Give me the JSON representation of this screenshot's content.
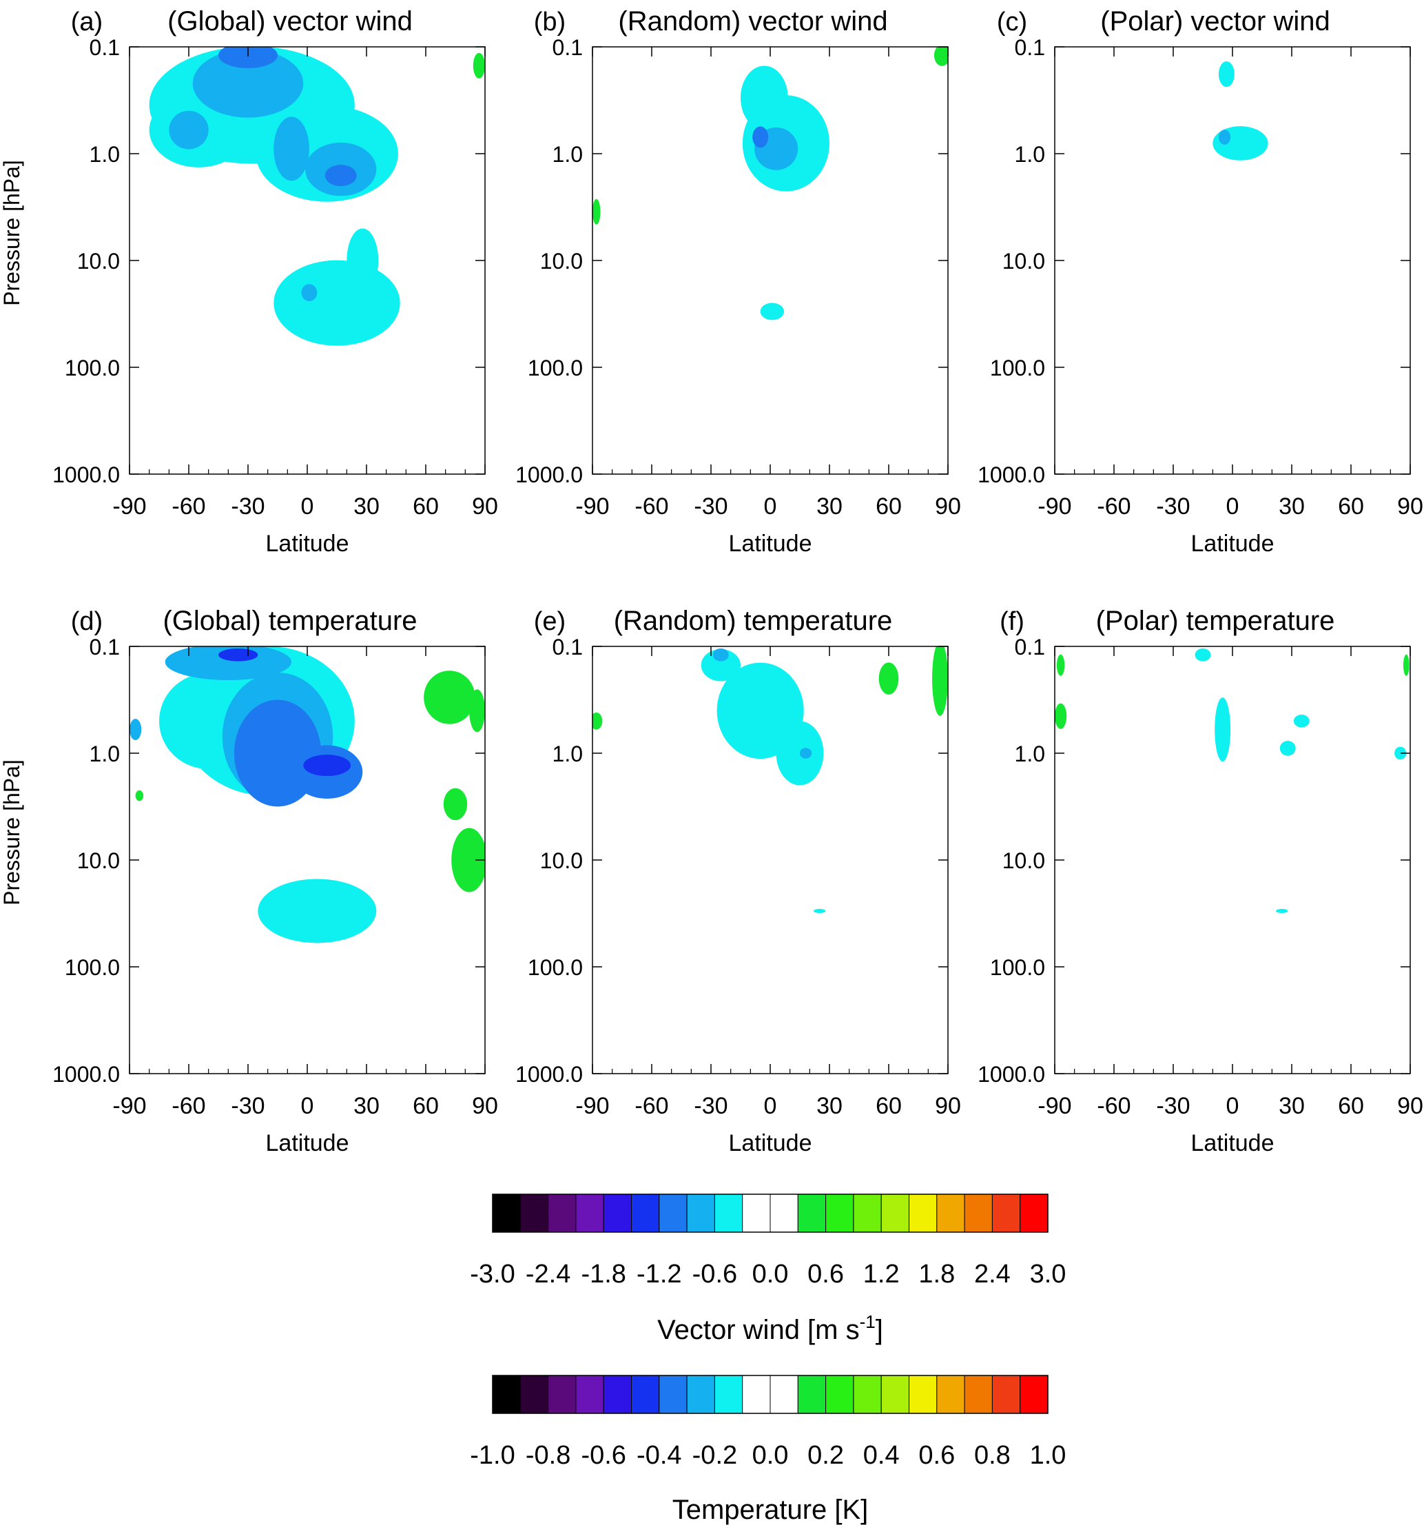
{
  "chart_data": [
    {
      "type": "heatmap",
      "panel": "(a)",
      "title": "(Global)  vector wind",
      "xlabel": "Latitude",
      "ylabel": "Pressure [hPa]",
      "xlim": [
        -90,
        90
      ],
      "xticks": [
        "-90",
        "-60",
        "-30",
        "0",
        "30",
        "60",
        "90"
      ],
      "yscale": "log",
      "ylim": [
        1000,
        0.1
      ],
      "yticks": [
        "0.1",
        "1.0",
        "10.0",
        "100.0",
        "1000.0"
      ],
      "shaded_regions": [
        {
          "level": -0.6,
          "lat": -25,
          "p": 0.25,
          "note": "broad light-blue region -90 to 40 lat, 0.1-3 hPa"
        },
        {
          "level": -1.2,
          "lat": -30,
          "p": 0.2
        },
        {
          "level": -1.8,
          "lat": -30,
          "p": 0.12
        },
        {
          "level": -1.2,
          "lat": 17,
          "p": 1.4
        },
        {
          "level": -1.8,
          "lat": 17,
          "p": 1.6
        },
        {
          "level": -0.6,
          "lat": 15,
          "p": 25
        },
        {
          "level": -1.2,
          "lat": 1,
          "p": 20
        },
        {
          "level": 0.6,
          "lat": 87,
          "p": 0.15
        }
      ]
    },
    {
      "type": "heatmap",
      "panel": "(b)",
      "title": "(Random)  vector wind",
      "xlabel": "Latitude",
      "ylabel": "",
      "xlim": [
        -90,
        90
      ],
      "xticks": [
        "-90",
        "-60",
        "-30",
        "0",
        "30",
        "60",
        "90"
      ],
      "yscale": "log",
      "ylim": [
        1000,
        0.1
      ],
      "yticks": [
        "0.1",
        "1.0",
        "10.0",
        "100.0",
        "1000.0"
      ],
      "shaded_regions": [
        {
          "level": -0.6,
          "lat": 5,
          "p": 0.6
        },
        {
          "level": -1.2,
          "lat": 3,
          "p": 0.8
        },
        {
          "level": -1.8,
          "lat": -5,
          "p": 0.7
        },
        {
          "level": -0.6,
          "lat": 1,
          "p": 30
        },
        {
          "level": 0.6,
          "lat": 87,
          "p": 0.12
        }
      ]
    },
    {
      "type": "heatmap",
      "panel": "(c)",
      "title": "(Polar)  vector wind",
      "xlabel": "Latitude",
      "ylabel": "",
      "xlim": [
        -90,
        90
      ],
      "xticks": [
        "-90",
        "-60",
        "-30",
        "0",
        "30",
        "60",
        "90"
      ],
      "yscale": "log",
      "ylim": [
        1000,
        0.1
      ],
      "yticks": [
        "0.1",
        "1.0",
        "10.0",
        "100.0",
        "1000.0"
      ],
      "shaded_regions": [
        {
          "level": -0.6,
          "lat": -3,
          "p": 0.18
        },
        {
          "level": -0.6,
          "lat": 5,
          "p": 0.8
        },
        {
          "level": -1.2,
          "lat": -4,
          "p": 0.7
        }
      ]
    },
    {
      "type": "heatmap",
      "panel": "(d)",
      "title": "(Global) temperature",
      "xlabel": "Latitude",
      "ylabel": "Pressure [hPa]",
      "xlim": [
        -90,
        90
      ],
      "xticks": [
        "-90",
        "-60",
        "-30",
        "0",
        "30",
        "60",
        "90"
      ],
      "yscale": "log",
      "ylim": [
        1000,
        0.1
      ],
      "yticks": [
        "0.1",
        "1.0",
        "10.0",
        "100.0",
        "1000.0"
      ],
      "shaded_regions": [
        {
          "level": -0.2,
          "lat": -20,
          "p": 0.5
        },
        {
          "level": -0.4,
          "lat": -20,
          "p": 0.6
        },
        {
          "level": -0.6,
          "lat": -35,
          "p": 0.12
        },
        {
          "level": -0.6,
          "lat": 10,
          "p": 1.5
        },
        {
          "level": -0.8,
          "lat": 10,
          "p": 1.2
        },
        {
          "level": -0.2,
          "lat": 5,
          "p": 30
        },
        {
          "level": 0.2,
          "lat": 72,
          "p": 0.3
        },
        {
          "level": 0.2,
          "lat": 80,
          "p": 10
        }
      ]
    },
    {
      "type": "heatmap",
      "panel": "(e)",
      "title": "(Random)  temperature",
      "xlabel": "Latitude",
      "ylabel": "",
      "xlim": [
        -90,
        90
      ],
      "xticks": [
        "-90",
        "-60",
        "-30",
        "0",
        "30",
        "60",
        "90"
      ],
      "yscale": "log",
      "ylim": [
        1000,
        0.1
      ],
      "yticks": [
        "0.1",
        "1.0",
        "10.0",
        "100.0",
        "1000.0"
      ],
      "shaded_regions": [
        {
          "level": -0.2,
          "lat": -5,
          "p": 0.4
        },
        {
          "level": -0.4,
          "lat": 18,
          "p": 1.0
        },
        {
          "level": 0.2,
          "lat": 60,
          "p": 0.2
        },
        {
          "level": 0.2,
          "lat": 86,
          "p": 0.2
        }
      ]
    },
    {
      "type": "heatmap",
      "panel": "(f)",
      "title": "(Polar)  temperature",
      "xlabel": "Latitude",
      "ylabel": "",
      "xlim": [
        -90,
        90
      ],
      "xticks": [
        "-90",
        "-60",
        "-30",
        "0",
        "30",
        "60",
        "90"
      ],
      "yscale": "log",
      "ylim": [
        1000,
        0.1
      ],
      "yticks": [
        "0.1",
        "1.0",
        "10.0",
        "100.0",
        "1000.0"
      ],
      "shaded_regions": [
        {
          "level": -0.2,
          "lat": -5,
          "p": 0.6
        },
        {
          "level": 0.2,
          "lat": -87,
          "p": 0.3
        },
        {
          "level": 0.2,
          "lat": -87,
          "p": 0.14
        }
      ]
    }
  ],
  "colorbars": [
    {
      "label": "Vector wind [m s",
      "label_superscript": "-1",
      "label_suffix": "]",
      "tick_labels": [
        "-3.0",
        "-2.4",
        "-1.8",
        "-1.2",
        "-0.6",
        "0.0",
        "0.6",
        "1.2",
        "1.8",
        "2.4",
        "3.0"
      ],
      "levels": [
        -3.0,
        -2.7,
        -2.4,
        -2.1,
        -1.8,
        -1.5,
        -1.2,
        -0.9,
        -0.6,
        -0.3,
        0.0,
        0.3,
        0.6,
        0.9,
        1.2,
        1.5,
        1.8,
        2.1,
        2.4,
        2.7,
        3.0
      ]
    },
    {
      "label": "Temperature [K]",
      "tick_labels": [
        "-1.0",
        "-0.8",
        "-0.6",
        "-0.4",
        "-0.2",
        "0.0",
        "0.2",
        "0.4",
        "0.6",
        "0.8",
        "1.0"
      ],
      "levels": [
        -1.0,
        -0.9,
        -0.8,
        -0.7,
        -0.6,
        -0.5,
        -0.4,
        -0.3,
        -0.2,
        -0.1,
        0.0,
        0.1,
        0.2,
        0.3,
        0.4,
        0.5,
        0.6,
        0.7,
        0.8,
        0.9,
        1.0
      ]
    }
  ],
  "colors": {
    "palette": [
      "#000000",
      "#2d0035",
      "#5a0a7a",
      "#6a14b8",
      "#2e14e6",
      "#1432f0",
      "#1e78f0",
      "#14b0f0",
      "#0ff0f0",
      "#ffffff",
      "#ffffff",
      "#14e632",
      "#28f014",
      "#6ef00a",
      "#aaf00a",
      "#f0f000",
      "#f0a800",
      "#f07800",
      "#f03c14",
      "#ff0000"
    ],
    "cyan": "#0ff0f0",
    "light_blue": "#14b0f0",
    "mid_blue": "#1e78f0",
    "deep_blue": "#1432f0",
    "green": "#14e632"
  }
}
